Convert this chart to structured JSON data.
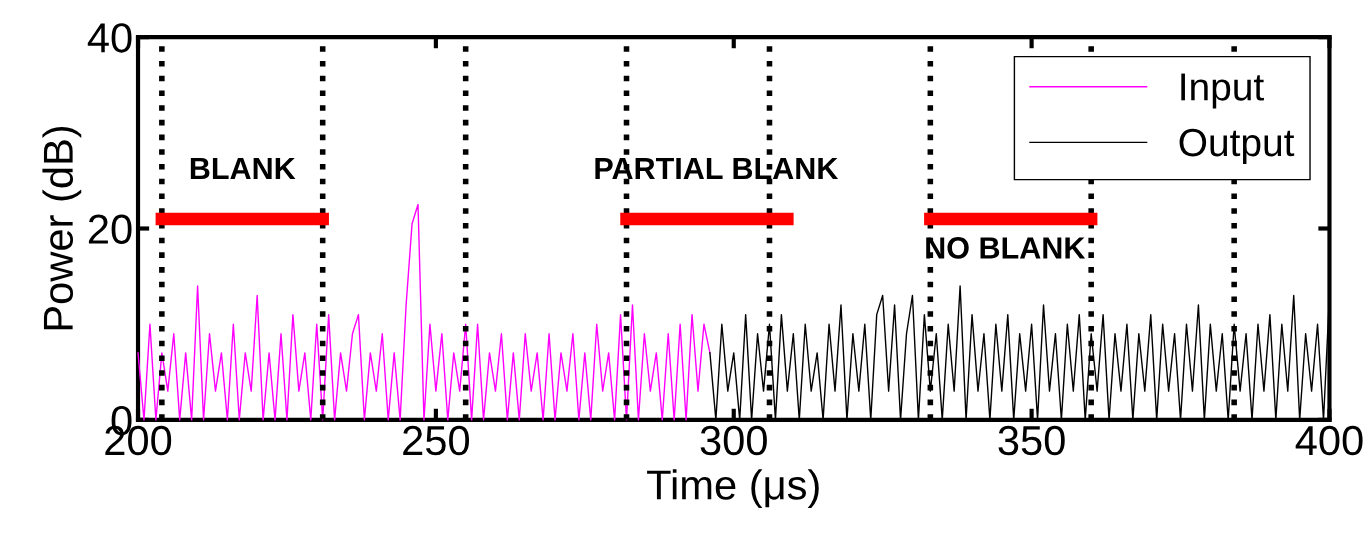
{
  "chart_data": {
    "type": "line",
    "xlabel": "Time (μs)",
    "ylabel": "Power (dB)",
    "xlim": [
      200,
      400
    ],
    "xticks": [
      200,
      250,
      300,
      350,
      400
    ],
    "ylim": [
      0,
      40
    ],
    "yticks": [
      0,
      20,
      40
    ],
    "grid": false,
    "legend": "top right",
    "line_style": "solid",
    "marker": "none",
    "series": [
      {
        "name": "Input",
        "color": "#ff00ff",
        "x": [
          200,
          201,
          202,
          203,
          204,
          205,
          206,
          207,
          208,
          209,
          210,
          211,
          212,
          213,
          214,
          215,
          216,
          217,
          218,
          219,
          220,
          221,
          222,
          223,
          224,
          225,
          226,
          227,
          228,
          229,
          230,
          231,
          232,
          233,
          234,
          235,
          236,
          237,
          238,
          239,
          240,
          241,
          242,
          243,
          244,
          245,
          246,
          247,
          248,
          249,
          250,
          251,
          252,
          253,
          254,
          255,
          256,
          257,
          258,
          259,
          260,
          261,
          262,
          263,
          264,
          265,
          266,
          267,
          268,
          269,
          270,
          271,
          272,
          273,
          274,
          275,
          276,
          277,
          278,
          279,
          280,
          281,
          282,
          283,
          284,
          285,
          286,
          287,
          288,
          289,
          290,
          291,
          292,
          293,
          294,
          295,
          296
        ],
        "values": [
          7,
          0,
          10,
          0,
          7,
          3,
          9,
          0,
          7,
          0,
          14,
          0,
          9,
          3,
          7,
          0,
          10,
          0,
          7,
          3,
          13,
          0,
          7,
          0,
          9,
          0,
          11,
          3,
          7,
          0,
          10,
          0,
          11,
          0,
          7,
          3,
          9,
          11,
          0,
          7,
          3,
          9,
          0,
          7,
          0,
          12,
          20.5,
          22.5,
          0,
          10,
          3,
          9,
          0,
          7,
          3,
          10,
          0,
          10,
          0,
          7,
          3,
          9,
          0,
          7,
          0,
          9,
          3,
          7,
          0,
          9,
          0,
          7,
          3,
          9,
          0,
          7,
          0,
          10,
          3,
          7,
          0,
          11,
          0,
          12,
          0,
          9,
          3,
          7,
          0,
          9,
          0,
          10,
          0,
          11,
          3,
          10,
          7
        ]
      },
      {
        "name": "Output",
        "color": "#000000",
        "x": [
          296,
          297,
          298,
          299,
          300,
          301,
          302,
          303,
          304,
          305,
          306,
          307,
          308,
          309,
          310,
          311,
          312,
          313,
          314,
          315,
          316,
          317,
          318,
          319,
          320,
          321,
          322,
          323,
          324,
          325,
          326,
          327,
          328,
          329,
          330,
          331,
          332,
          333,
          334,
          335,
          336,
          337,
          338,
          339,
          340,
          341,
          342,
          343,
          344,
          345,
          346,
          347,
          348,
          349,
          350,
          351,
          352,
          353,
          354,
          355,
          356,
          357,
          358,
          359,
          360,
          361,
          362,
          363,
          364,
          365,
          366,
          367,
          368,
          369,
          370,
          371,
          372,
          373,
          374,
          375,
          376,
          377,
          378,
          379,
          380,
          381,
          382,
          383,
          384,
          385,
          386,
          387,
          388,
          389,
          390,
          391,
          392,
          393,
          394,
          395,
          396,
          397,
          398,
          399,
          400
        ],
        "values": [
          7,
          0,
          10,
          3,
          7,
          0,
          11,
          0,
          9,
          3,
          10,
          0,
          11,
          3,
          9,
          0,
          10,
          3,
          7,
          0,
          10,
          3,
          12,
          0,
          9,
          3,
          10,
          0,
          11,
          13,
          3,
          12,
          0,
          9,
          13,
          0,
          11,
          3,
          9,
          0,
          10,
          3,
          14,
          0,
          11,
          3,
          9,
          0,
          10,
          3,
          11,
          0,
          9,
          3,
          10,
          0,
          12,
          3,
          9,
          0,
          10,
          3,
          11,
          0,
          9,
          3,
          11,
          0,
          9,
          3,
          10,
          0,
          9,
          3,
          11,
          0,
          10,
          3,
          9,
          0,
          10,
          3,
          12,
          0,
          10,
          3,
          9,
          0,
          10,
          3,
          9,
          0,
          10,
          3,
          11,
          0,
          10,
          3,
          13,
          0,
          9,
          3,
          10,
          0,
          13
        ]
      },
      {
        "color": "#ff0000",
        "x": [
          204,
          231
        ],
        "values": [
          21,
          21
        ]
      },
      {
        "color": "#ff0000",
        "x": [
          282,
          309
        ],
        "values": [
          21,
          21
        ]
      },
      {
        "color": "#ff0000",
        "x": [
          333,
          360
        ],
        "values": [
          21,
          21
        ]
      }
    ],
    "ref_lines": [
      {
        "axis": "x",
        "value": 204,
        "color": "#000000",
        "line_style": "dotted"
      },
      {
        "axis": "x",
        "value": 231,
        "color": "#000000",
        "line_style": "dotted"
      },
      {
        "axis": "x",
        "value": 255,
        "color": "#000000",
        "line_style": "dotted"
      },
      {
        "axis": "x",
        "value": 282,
        "color": "#000000",
        "line_style": "dotted"
      },
      {
        "axis": "x",
        "value": 306,
        "color": "#000000",
        "line_style": "dotted"
      },
      {
        "axis": "x",
        "value": 333,
        "color": "#000000",
        "line_style": "dotted"
      },
      {
        "axis": "x",
        "value": 360,
        "color": "#000000",
        "line_style": "dotted"
      },
      {
        "axis": "x",
        "value": 384,
        "color": "#000000",
        "line_style": "dotted"
      }
    ],
    "annotations": [
      "BLANK",
      "PARTIAL BLANK",
      "NO BLANK"
    ]
  }
}
